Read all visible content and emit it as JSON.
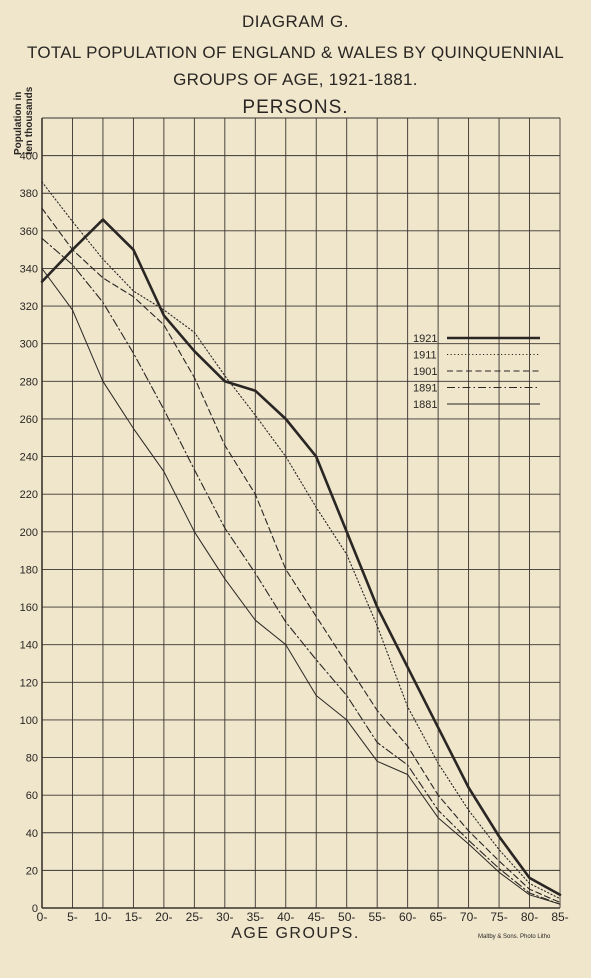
{
  "titles": {
    "diagram": "DIAGRAM G.",
    "line1": "TOTAL POPULATION OF ENGLAND & WALES BY QUINQUENNIAL",
    "line2": "GROUPS OF AGE, 1921-1881.",
    "line3": "PERSONS."
  },
  "credit": "Maltby & Sons. Photo Litho",
  "chart_data": {
    "type": "line",
    "title": "TOTAL POPULATION OF ENGLAND & WALES BY QUINQUENNIAL GROUPS OF AGE, 1921-1881.",
    "subtitle": "PERSONS.",
    "xlabel": "AGE GROUPS.",
    "ylabel_line1": "Population in",
    "ylabel_line2": "ten thousands",
    "categories": [
      "0-",
      "5-",
      "10-",
      "15-",
      "20-",
      "25-",
      "30-",
      "35-",
      "40-",
      "45-",
      "50-",
      "55-",
      "60-",
      "65-",
      "70-",
      "75-",
      "80-",
      "85-"
    ],
    "yticks": [
      "0",
      "20",
      "40",
      "60",
      "80",
      "100",
      "120",
      "140",
      "160",
      "180",
      "200",
      "220",
      "240",
      "260",
      "280",
      "300",
      "320",
      "340",
      "360",
      "380",
      "400"
    ],
    "ylim": [
      0,
      420
    ],
    "grid": true,
    "legend_position": "right",
    "series": [
      {
        "name": "1921",
        "style": "thick-solid",
        "values": [
          333,
          350,
          366,
          350,
          315,
          296,
          280,
          275,
          260,
          240,
          200,
          160,
          128,
          96,
          64,
          38,
          16,
          7
        ]
      },
      {
        "name": "1911",
        "style": "dotted",
        "values": [
          386,
          365,
          345,
          328,
          318,
          306,
          283,
          262,
          240,
          213,
          188,
          150,
          107,
          77,
          52,
          31,
          13,
          5
        ]
      },
      {
        "name": "1901",
        "style": "dashed",
        "values": [
          372,
          350,
          335,
          325,
          310,
          282,
          246,
          220,
          180,
          155,
          130,
          105,
          86,
          60,
          41,
          25,
          10,
          3
        ]
      },
      {
        "name": "1891",
        "style": "dash-dot",
        "values": [
          356,
          342,
          322,
          295,
          265,
          233,
          202,
          178,
          152,
          132,
          113,
          88,
          76,
          52,
          36,
          21,
          8,
          2
        ]
      },
      {
        "name": "1881",
        "style": "thin-solid",
        "values": [
          340,
          318,
          280,
          255,
          232,
          200,
          175,
          153,
          140,
          113,
          100,
          78,
          71,
          48,
          34,
          19,
          7,
          2
        ]
      }
    ]
  }
}
